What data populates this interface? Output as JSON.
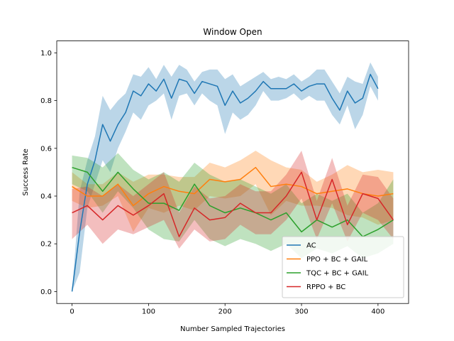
{
  "chart_data": {
    "type": "line",
    "title": "Window Open",
    "xlabel": "Number Sampled Trajectories",
    "ylabel": "Success Rate",
    "xlim": [
      -20,
      440
    ],
    "ylim": [
      -0.05,
      1.05
    ],
    "xticks": [
      0,
      100,
      200,
      300,
      400
    ],
    "yticks": [
      0.0,
      0.2,
      0.4,
      0.6,
      0.8,
      1.0
    ],
    "xtick_labels": [
      "0",
      "100",
      "200",
      "300",
      "400"
    ],
    "ytick_labels": [
      "0.0",
      "0.2",
      "0.4",
      "0.6",
      "0.8",
      "1.0"
    ],
    "grid": false,
    "legend_position": "lower-right",
    "series": [
      {
        "name": "AC",
        "color": "#1f77b4",
        "x": [
          0,
          10,
          20,
          30,
          40,
          50,
          60,
          70,
          80,
          90,
          100,
          110,
          120,
          130,
          140,
          150,
          160,
          170,
          180,
          190,
          200,
          210,
          220,
          230,
          240,
          250,
          260,
          270,
          280,
          290,
          300,
          310,
          320,
          330,
          340,
          350,
          360,
          370,
          380,
          390,
          400
        ],
        "y": [
          0.0,
          0.25,
          0.45,
          0.55,
          0.7,
          0.63,
          0.7,
          0.75,
          0.84,
          0.82,
          0.87,
          0.84,
          0.89,
          0.81,
          0.89,
          0.88,
          0.83,
          0.88,
          0.87,
          0.86,
          0.78,
          0.84,
          0.79,
          0.81,
          0.84,
          0.88,
          0.85,
          0.85,
          0.85,
          0.87,
          0.84,
          0.86,
          0.87,
          0.87,
          0.81,
          0.76,
          0.84,
          0.79,
          0.81,
          0.91,
          0.85
        ],
        "lower": [
          0.0,
          0.08,
          0.35,
          0.45,
          0.55,
          0.5,
          0.6,
          0.67,
          0.75,
          0.72,
          0.78,
          0.8,
          0.83,
          0.72,
          0.82,
          0.83,
          0.78,
          0.83,
          0.8,
          0.78,
          0.66,
          0.75,
          0.72,
          0.74,
          0.78,
          0.84,
          0.8,
          0.8,
          0.81,
          0.83,
          0.8,
          0.82,
          0.8,
          0.8,
          0.74,
          0.7,
          0.78,
          0.68,
          0.74,
          0.86,
          0.8
        ],
        "upper": [
          0.0,
          0.42,
          0.55,
          0.65,
          0.82,
          0.76,
          0.8,
          0.83,
          0.91,
          0.9,
          0.94,
          0.89,
          0.95,
          0.9,
          0.95,
          0.93,
          0.88,
          0.92,
          0.93,
          0.93,
          0.89,
          0.91,
          0.86,
          0.88,
          0.9,
          0.92,
          0.89,
          0.9,
          0.89,
          0.91,
          0.88,
          0.9,
          0.93,
          0.93,
          0.88,
          0.83,
          0.9,
          0.88,
          0.87,
          0.96,
          0.9
        ]
      },
      {
        "name": "PPO + BC + GAIL",
        "color": "#ff7f0e",
        "x": [
          0,
          20,
          40,
          60,
          80,
          100,
          120,
          140,
          160,
          180,
          200,
          220,
          240,
          260,
          280,
          300,
          320,
          340,
          360,
          380,
          400,
          420
        ],
        "y": [
          0.44,
          0.4,
          0.4,
          0.45,
          0.36,
          0.41,
          0.44,
          0.42,
          0.41,
          0.47,
          0.46,
          0.47,
          0.52,
          0.44,
          0.45,
          0.44,
          0.41,
          0.42,
          0.43,
          0.41,
          0.4,
          0.41
        ],
        "lower": [
          0.38,
          0.35,
          0.36,
          0.4,
          0.25,
          0.35,
          0.33,
          0.36,
          0.34,
          0.4,
          0.39,
          0.4,
          0.45,
          0.32,
          0.38,
          0.36,
          0.36,
          0.35,
          0.32,
          0.31,
          0.28,
          0.3
        ],
        "upper": [
          0.5,
          0.45,
          0.45,
          0.5,
          0.46,
          0.49,
          0.49,
          0.48,
          0.48,
          0.54,
          0.52,
          0.55,
          0.59,
          0.55,
          0.52,
          0.51,
          0.46,
          0.49,
          0.53,
          0.5,
          0.51,
          0.5
        ]
      },
      {
        "name": "TQC + BC + GAIL",
        "color": "#2ca02c",
        "x": [
          0,
          20,
          40,
          60,
          80,
          100,
          120,
          140,
          160,
          180,
          200,
          220,
          240,
          260,
          280,
          300,
          320,
          340,
          360,
          380,
          400,
          420
        ],
        "y": [
          0.52,
          0.5,
          0.42,
          0.5,
          0.43,
          0.37,
          0.37,
          0.34,
          0.45,
          0.36,
          0.33,
          0.35,
          0.33,
          0.3,
          0.33,
          0.25,
          0.3,
          0.27,
          0.3,
          0.23,
          0.26,
          0.3
        ],
        "lower": [
          0.45,
          0.42,
          0.33,
          0.42,
          0.35,
          0.26,
          0.22,
          0.21,
          0.3,
          0.22,
          0.19,
          0.22,
          0.2,
          0.17,
          0.2,
          0.14,
          0.18,
          0.16,
          0.19,
          0.14,
          0.16,
          0.2
        ],
        "upper": [
          0.57,
          0.56,
          0.52,
          0.58,
          0.51,
          0.47,
          0.5,
          0.46,
          0.54,
          0.49,
          0.46,
          0.47,
          0.44,
          0.41,
          0.45,
          0.37,
          0.41,
          0.38,
          0.41,
          0.33,
          0.37,
          0.47
        ]
      },
      {
        "name": "RPPO + BC",
        "color": "#d62728",
        "x": [
          0,
          20,
          40,
          60,
          80,
          100,
          120,
          140,
          160,
          180,
          200,
          220,
          240,
          260,
          280,
          300,
          320,
          340,
          360,
          380,
          400,
          420
        ],
        "y": [
          0.33,
          0.36,
          0.3,
          0.36,
          0.32,
          0.36,
          0.41,
          0.23,
          0.35,
          0.3,
          0.31,
          0.37,
          0.33,
          0.33,
          0.4,
          0.5,
          0.3,
          0.47,
          0.28,
          0.41,
          0.39,
          0.3
        ],
        "lower": [
          0.22,
          0.28,
          0.2,
          0.26,
          0.24,
          0.27,
          0.3,
          0.18,
          0.26,
          0.21,
          0.22,
          0.28,
          0.24,
          0.24,
          0.3,
          0.39,
          0.22,
          0.37,
          0.21,
          0.33,
          0.3,
          0.22
        ],
        "upper": [
          0.43,
          0.44,
          0.4,
          0.45,
          0.4,
          0.45,
          0.5,
          0.33,
          0.44,
          0.39,
          0.4,
          0.45,
          0.42,
          0.42,
          0.49,
          0.59,
          0.38,
          0.56,
          0.36,
          0.49,
          0.48,
          0.39
        ]
      }
    ]
  }
}
